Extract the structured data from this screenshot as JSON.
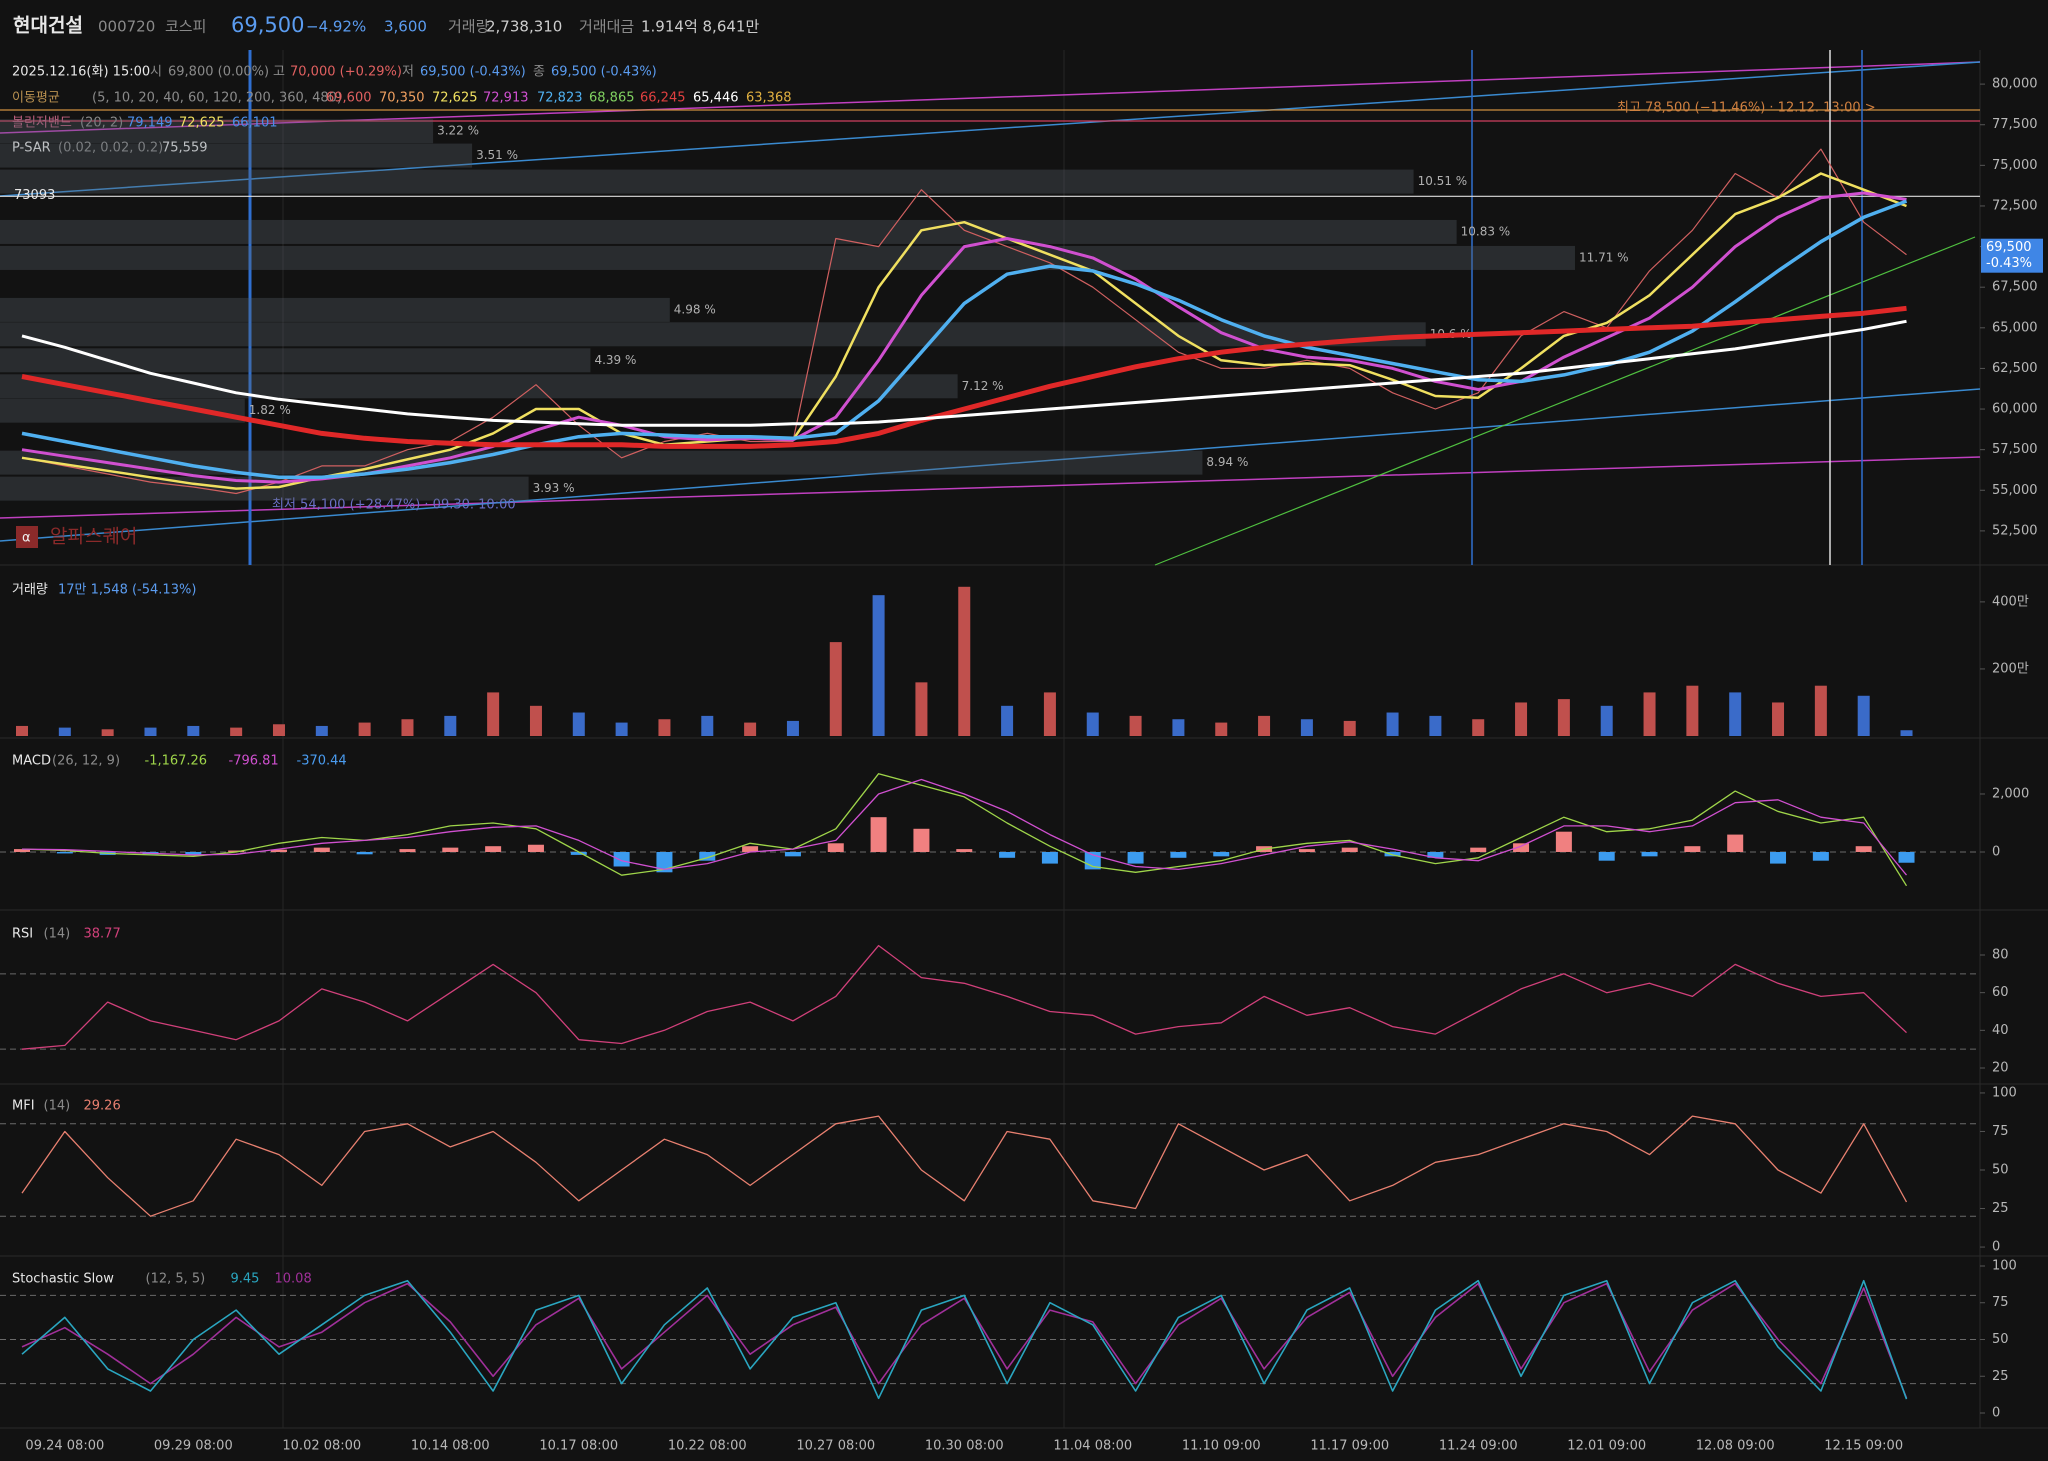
{
  "header": {
    "name": "현대건설",
    "code": "000720",
    "market": "코스피",
    "price": "69,500",
    "change_pct": "−4.92%",
    "change": "3,600",
    "volume_label": "거래량",
    "volume": "2,738,310",
    "amount_label": "거래대금",
    "amount": "1.914억 8,641만"
  },
  "info": {
    "datetime": "2025.12.16(화) 15:00",
    "open_label": "시",
    "open": "69,800 (0.00%)",
    "high_label": "고",
    "high": "70,000 (+0.29%)",
    "low_label": "저",
    "low": "69,500 (-0.43%)",
    "close_label": "종",
    "close": "69,500 (-0.43%)"
  },
  "chart_data": [
    {
      "type": "line",
      "ylim": [
        50400,
        82100
      ],
      "yticks": [
        {
          "value": 52500,
          "label": "52,500"
        },
        {
          "value": 55000,
          "label": "55,000"
        },
        {
          "value": 57500,
          "label": "57,500"
        },
        {
          "value": 60000,
          "label": "60,000"
        },
        {
          "value": 62500,
          "label": "62,500"
        },
        {
          "value": 65000,
          "label": "65,000"
        },
        {
          "value": 67500,
          "label": "67,500"
        },
        {
          "value": 70000,
          "label": "70,000"
        },
        {
          "value": 72500,
          "label": "72,500"
        },
        {
          "value": 75000,
          "label": "75,000"
        },
        {
          "value": 77500,
          "label": "77,500"
        },
        {
          "value": 80000,
          "label": "80,000"
        }
      ],
      "ma_label": "이동평균",
      "ma_params": "(5, 10, 20, 40, 60, 120, 200, 360, 480)",
      "ma_legend": {
        "labels": [
          "69,600",
          "70,350",
          "72,625",
          "72,913",
          "72,823",
          "68,865",
          "66,245",
          "65,446",
          "63,368"
        ],
        "colors": [
          "#e06060",
          "#f0a060",
          "#f0e060",
          "#d050d0",
          "#50b0f0",
          "#80d060",
          "#e04040",
          "#ffffff",
          "#e0b040"
        ]
      },
      "bollinger": {
        "label": "볼린저밴드",
        "params": "(20, 2)",
        "values": [
          "79,149",
          "72,625",
          "66,101"
        ],
        "colors": [
          "#4a8ee8",
          "#f0e060",
          "#4a8ee8"
        ]
      },
      "psar": {
        "label": "P-SAR",
        "params": "(0.02, 0.02, 0.2)",
        "value": "75,559"
      },
      "hline": {
        "value": 73093,
        "label": "73093"
      },
      "volume_profile": {
        "prices": [
          77100,
          75600,
          74000,
          70900,
          69300,
          66100,
          64600,
          63000,
          61400,
          59900,
          56700,
          55100
        ],
        "values": [
          3.22,
          3.51,
          10.51,
          10.83,
          11.71,
          4.98,
          10.6,
          4.39,
          7.12,
          1.82,
          8.94,
          3.93
        ],
        "value_labels": [
          "3.22 %",
          "3.51 %",
          "10.51 %",
          "10.83 %",
          "11.71 %",
          "4.98 %",
          "10.6 %",
          "4.39 %",
          "7.12 %",
          "1.82 %",
          "8.94 %",
          "3.93 %"
        ]
      },
      "high_note": "최고 78,500 (−11.46%) · 12.12. 13:00 >",
      "low_note": "최저 54,100 (+28.47%) · 09.30. 10:00",
      "last_price": {
        "value": 69500,
        "label": "69,500",
        "change": "-0.43%"
      },
      "watermark": "알파스퀘어",
      "series": [
        {
          "color": "#d06060",
          "width": 1.2,
          "values": [
            57000,
            56500,
            56000,
            55500,
            55200,
            54800,
            55500,
            56500,
            56500,
            57500,
            58000,
            59500,
            61500,
            59000,
            57000,
            58000,
            58500,
            58000,
            58000,
            70500,
            70000,
            73500,
            71000,
            70000,
            69000,
            67500,
            65500,
            63500,
            62500,
            62500,
            63000,
            62500,
            61000,
            60000,
            61000,
            64500,
            66000,
            65000,
            68500,
            71000,
            74500,
            73000,
            76000,
            71500,
            69500
          ]
        },
        {
          "color": "#f0e060",
          "width": 2.5,
          "values": [
            57000,
            56600,
            56200,
            55800,
            55400,
            55100,
            55200,
            55800,
            56300,
            56900,
            57500,
            58500,
            60000,
            60000,
            58500,
            57800,
            58000,
            58200,
            58100,
            62000,
            67500,
            71000,
            71500,
            70500,
            69500,
            68500,
            66500,
            64500,
            63000,
            62700,
            62800,
            62700,
            61800,
            60800,
            60700,
            62500,
            64500,
            65300,
            67000,
            69500,
            72000,
            73000,
            74500,
            73500,
            72500
          ]
        },
        {
          "color": "#d050d0",
          "width": 3,
          "values": [
            57500,
            57100,
            56700,
            56300,
            55900,
            55600,
            55500,
            55700,
            56000,
            56500,
            57000,
            57700,
            58700,
            59500,
            59000,
            58300,
            58100,
            58200,
            58100,
            59500,
            63000,
            67000,
            70000,
            70500,
            70000,
            69300,
            68000,
            66300,
            64700,
            63700,
            63200,
            63000,
            62500,
            61700,
            61200,
            61700,
            63200,
            64400,
            65600,
            67500,
            70000,
            71800,
            73000,
            73300,
            72900
          ]
        },
        {
          "color": "#50b0f0",
          "width": 3.5,
          "values": [
            58500,
            58000,
            57500,
            57000,
            56500,
            56100,
            55800,
            55800,
            56000,
            56300,
            56700,
            57200,
            57800,
            58300,
            58500,
            58400,
            58300,
            58300,
            58200,
            58500,
            60500,
            63500,
            66500,
            68300,
            68800,
            68500,
            67700,
            66700,
            65500,
            64500,
            63800,
            63300,
            62800,
            62300,
            61800,
            61700,
            62100,
            62700,
            63500,
            64800,
            66600,
            68500,
            70300,
            71800,
            72800
          ]
        },
        {
          "color": "#e02828",
          "width": 5,
          "values": [
            62000,
            61500,
            61000,
            60500,
            60000,
            59500,
            59000,
            58500,
            58200,
            58000,
            57900,
            57800,
            57800,
            57800,
            57800,
            57700,
            57700,
            57700,
            57800,
            58000,
            58500,
            59300,
            60000,
            60700,
            61400,
            62000,
            62600,
            63100,
            63500,
            63800,
            64000,
            64200,
            64400,
            64500,
            64600,
            64700,
            64800,
            64900,
            65000,
            65100,
            65300,
            65500,
            65700,
            65900,
            66200
          ]
        },
        {
          "color": "#ffffff",
          "width": 3,
          "values": [
            64500,
            63800,
            63000,
            62200,
            61600,
            61000,
            60600,
            60300,
            60000,
            59700,
            59500,
            59300,
            59200,
            59100,
            59000,
            59000,
            59000,
            59000,
            59100,
            59100,
            59200,
            59400,
            59600,
            59800,
            60000,
            60200,
            60400,
            60600,
            60800,
            61000,
            61200,
            61400,
            61600,
            61800,
            62000,
            62200,
            62500,
            62800,
            63100,
            63400,
            63700,
            64100,
            64500,
            64900,
            65400
          ]
        }
      ]
    },
    {
      "type": "bar",
      "title": "거래량",
      "legend_value": "17만 1,548 (-54.13%)",
      "ylim": [
        0,
        5100000
      ],
      "yticks": [
        {
          "value": 2000000,
          "label": "200만"
        },
        {
          "value": 4000000,
          "label": "400만"
        }
      ],
      "values": [
        300000,
        250000,
        200000,
        250000,
        300000,
        250000,
        350000,
        300000,
        400000,
        500000,
        600000,
        1300000,
        900000,
        700000,
        400000,
        500000,
        600000,
        400000,
        450000,
        2800000,
        4200000,
        1600000,
        4450000,
        900000,
        1300000,
        700000,
        600000,
        500000,
        400000,
        600000,
        500000,
        450000,
        700000,
        600000,
        500000,
        1000000,
        1100000,
        900000,
        1300000,
        1500000,
        1300000,
        1000000,
        1500000,
        1200000,
        171548
      ],
      "colors": [
        "#c0504d",
        "#3a6bc9",
        "#c0504d",
        "#3a6bc9",
        "#3a6bc9",
        "#c0504d",
        "#c0504d",
        "#3a6bc9",
        "#c0504d",
        "#c0504d",
        "#3a6bc9",
        "#c0504d",
        "#c0504d",
        "#3a6bc9",
        "#3a6bc9",
        "#c0504d",
        "#3a6bc9",
        "#c0504d",
        "#3a6bc9",
        "#c0504d",
        "#3a6bc9",
        "#c0504d",
        "#c0504d",
        "#3a6bc9",
        "#c0504d",
        "#3a6bc9",
        "#c0504d",
        "#3a6bc9",
        "#c0504d",
        "#c0504d",
        "#3a6bc9",
        "#c0504d",
        "#3a6bc9",
        "#3a6bc9",
        "#c0504d",
        "#c0504d",
        "#c0504d",
        "#3a6bc9",
        "#c0504d",
        "#c0504d",
        "#3a6bc9",
        "#c0504d",
        "#c0504d",
        "#3a6bc9",
        "#3a6bc9"
      ]
    },
    {
      "type": "macd",
      "title": "MACD",
      "params": "(26, 12, 9)",
      "legend_values": [
        "-1,167.26",
        "-796.81",
        "-370.44"
      ],
      "legend_colors": [
        "#9fd54a",
        "#d050d0",
        "#4a9cf0"
      ],
      "ylim": [
        -2000,
        3930
      ],
      "yticks": [
        0,
        {
          "value": 2000,
          "label": "2,000"
        }
      ],
      "reference_lines": [
        0
      ],
      "histogram": {
        "colors": [
          "#f08080",
          "#3c9cf0"
        ],
        "values": [
          100,
          -50,
          -100,
          -80,
          -100,
          50,
          80,
          150,
          -80,
          100,
          150,
          200,
          250,
          -100,
          -500,
          -700,
          -300,
          200,
          -150,
          300,
          1200,
          800,
          100,
          -200,
          -400,
          -600,
          -400,
          -200,
          -150,
          200,
          100,
          150,
          -150,
          -200,
          150,
          300,
          700,
          -300,
          -150,
          200,
          600,
          -400,
          -300,
          200,
          -370.44
        ]
      },
      "series": [
        {
          "color": "#9fd54a",
          "width": 1.3,
          "values": [
            100,
            50,
            -50,
            -100,
            -150,
            0,
            300,
            500,
            400,
            600,
            900,
            1000,
            800,
            0,
            -800,
            -600,
            -200,
            300,
            100,
            800,
            2700,
            2300,
            1900,
            1000,
            200,
            -500,
            -700,
            -500,
            -300,
            100,
            300,
            400,
            -100,
            -400,
            -200,
            500,
            1200,
            700,
            800,
            1100,
            2100,
            1400,
            1000,
            1200,
            -1167.26
          ]
        },
        {
          "color": "#d050d0",
          "width": 1.3,
          "values": [
            100,
            80,
            20,
            -50,
            -100,
            -80,
            100,
            300,
            400,
            500,
            700,
            850,
            900,
            400,
            -300,
            -600,
            -400,
            0,
            100,
            400,
            2000,
            2500,
            2000,
            1400,
            600,
            -100,
            -500,
            -600,
            -400,
            -100,
            200,
            350,
            100,
            -200,
            -300,
            200,
            900,
            900,
            700,
            900,
            1700,
            1800,
            1200,
            1000,
            -796.81
          ]
        }
      ]
    },
    {
      "type": "line",
      "title": "RSI",
      "params": "(14)",
      "legend_values": [
        "38.77"
      ],
      "legend_colors": [
        "#d0407a"
      ],
      "ylim": [
        11.5,
        103.9
      ],
      "yticks": [
        20,
        40,
        60,
        80
      ],
      "reference_lines": [
        30,
        70
      ],
      "series": [
        {
          "color": "#d0407a",
          "width": 1.3,
          "values": [
            30,
            32,
            55,
            45,
            40,
            35,
            45,
            62,
            55,
            45,
            60,
            75,
            60,
            35,
            33,
            40,
            50,
            55,
            45,
            58,
            85,
            68,
            65,
            58,
            50,
            48,
            38,
            42,
            44,
            58,
            48,
            52,
            42,
            38,
            50,
            62,
            70,
            60,
            65,
            58,
            75,
            65,
            58,
            60,
            38.77
          ]
        }
      ]
    },
    {
      "type": "line",
      "title": "MFI",
      "params": "(14)",
      "legend_values": [
        "29.26"
      ],
      "legend_colors": [
        "#e88070"
      ],
      "ylim": [
        -5.8,
        105.8
      ],
      "yticks": [
        0,
        25,
        50,
        75,
        100
      ],
      "reference_lines": [
        20,
        80
      ],
      "series": [
        {
          "color": "#e88070",
          "width": 1.3,
          "values": [
            35,
            75,
            45,
            20,
            30,
            70,
            60,
            40,
            75,
            80,
            65,
            75,
            55,
            30,
            50,
            70,
            60,
            40,
            60,
            80,
            85,
            50,
            30,
            75,
            70,
            30,
            25,
            80,
            65,
            50,
            60,
            30,
            40,
            55,
            60,
            70,
            80,
            75,
            60,
            85,
            80,
            50,
            35,
            80,
            29.26
          ]
        }
      ]
    },
    {
      "type": "line",
      "title": "Stochastic Slow",
      "params": "(12, 5, 5)",
      "legend_values": [
        "9.45",
        "10.08"
      ],
      "legend_colors": [
        "#2aa6c0",
        "#a0309a"
      ],
      "ylim": [
        -10.2,
        106.8
      ],
      "yticks": [
        0,
        25,
        50,
        75,
        100
      ],
      "reference_lines": [
        20,
        50,
        80
      ],
      "categories": [
        null,
        "09.24 08:00",
        null,
        null,
        "09.29 08:00",
        null,
        null,
        "10.02 08:00",
        null,
        null,
        "10.14 08:00",
        null,
        null,
        "10.17 08:00",
        null,
        null,
        "10.22 08:00",
        null,
        null,
        "10.27 08:00",
        null,
        null,
        "10.30 08:00",
        null,
        null,
        "11.04 08:00",
        null,
        null,
        "11.10 09:00",
        null,
        null,
        "11.17 09:00",
        null,
        null,
        "11.24 09:00",
        null,
        null,
        "12.01 09:00",
        null,
        null,
        "12.08 09:00",
        null,
        null,
        "12.15 09:00",
        null
      ],
      "series": [
        {
          "color": "#a0309a",
          "width": 1.6,
          "values": [
            45,
            58,
            40,
            20,
            40,
            65,
            45,
            55,
            75,
            88,
            62,
            25,
            60,
            78,
            30,
            55,
            80,
            40,
            60,
            72,
            20,
            60,
            78,
            30,
            70,
            62,
            20,
            60,
            78,
            30,
            65,
            82,
            25,
            65,
            88,
            30,
            75,
            88,
            28,
            70,
            88,
            50,
            20,
            85,
            10.08
          ]
        },
        {
          "color": "#2aa6c0",
          "width": 1.6,
          "values": [
            40,
            65,
            30,
            15,
            50,
            70,
            40,
            60,
            80,
            90,
            55,
            15,
            70,
            80,
            20,
            60,
            85,
            30,
            65,
            75,
            10,
            70,
            80,
            20,
            75,
            60,
            15,
            65,
            80,
            20,
            70,
            85,
            15,
            70,
            90,
            25,
            80,
            90,
            20,
            75,
            90,
            45,
            15,
            90,
            9.45
          ]
        }
      ]
    }
  ]
}
